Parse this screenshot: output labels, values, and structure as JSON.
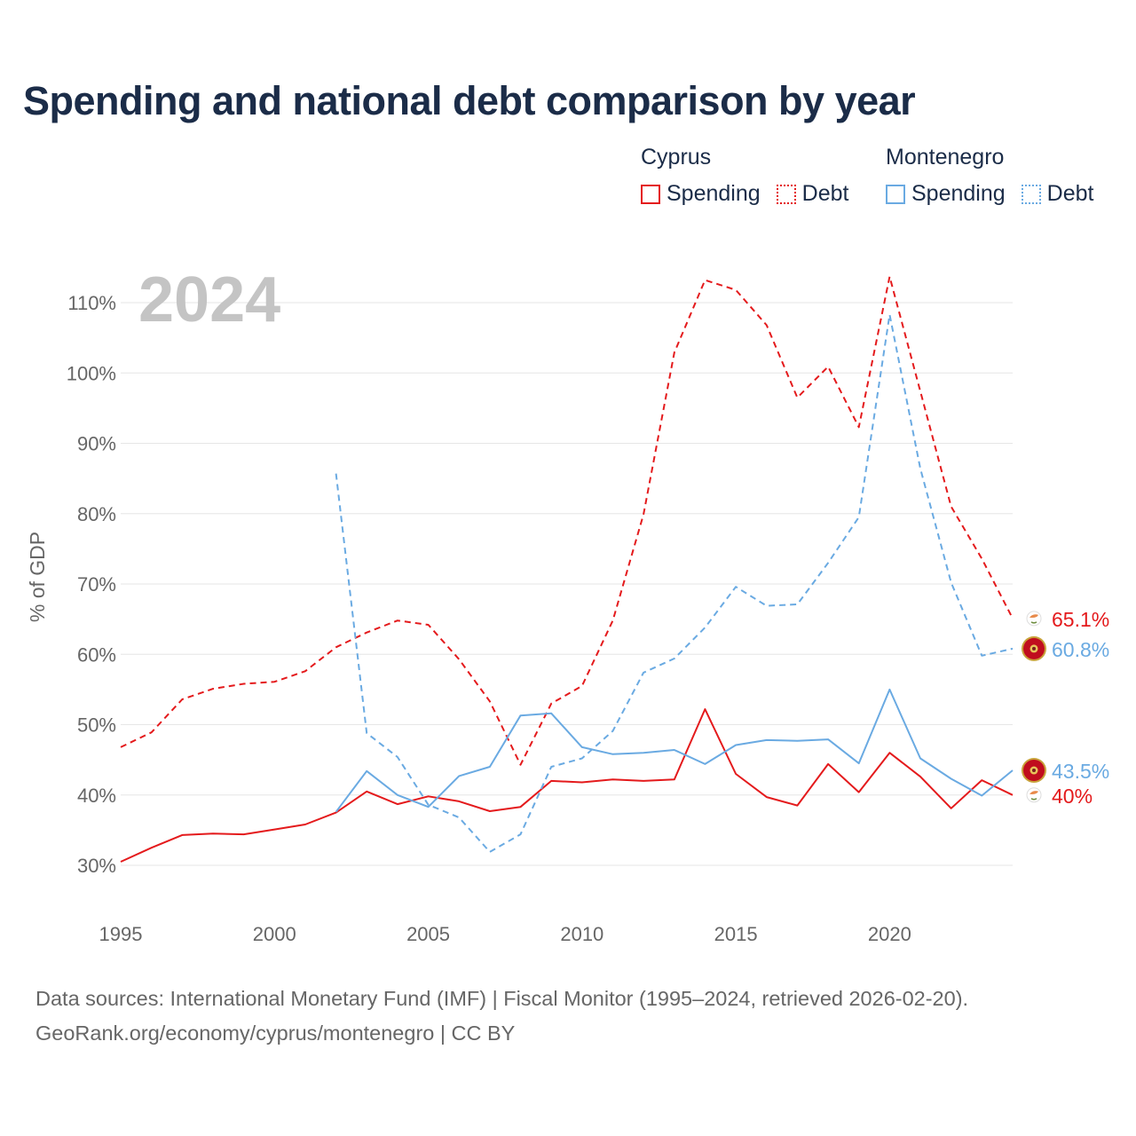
{
  "chart_data": {
    "type": "line",
    "title": "Spending and national debt comparison by year",
    "year_watermark": "2024",
    "ylabel": "% of GDP",
    "xlabel": "",
    "xlim": [
      1995,
      2024
    ],
    "ylim": [
      27,
      114
    ],
    "y_ticks": [
      30,
      40,
      50,
      60,
      70,
      80,
      90,
      100,
      110
    ],
    "y_tick_labels": [
      "30%",
      "40%",
      "50%",
      "60%",
      "70%",
      "80%",
      "90%",
      "100%",
      "110%"
    ],
    "x_ticks": [
      1995,
      2000,
      2005,
      2010,
      2015,
      2020
    ],
    "x_tick_labels": [
      "1995",
      "2000",
      "2005",
      "2010",
      "2015",
      "2020"
    ],
    "grid": true,
    "legend_position": "top-right",
    "legend": {
      "groups": [
        {
          "country": "Cyprus",
          "color": "#e41a1c",
          "items": [
            {
              "label": "Spending",
              "style": "solid"
            },
            {
              "label": "Debt",
              "style": "dotted"
            }
          ]
        },
        {
          "country": "Montenegro",
          "color": "#6aaae2",
          "items": [
            {
              "label": "Spending",
              "style": "solid"
            },
            {
              "label": "Debt",
              "style": "dotted"
            }
          ]
        }
      ]
    },
    "series": [
      {
        "name": "Cyprus Spending",
        "color": "#e41a1c",
        "dash": "solid",
        "x": [
          1995,
          1996,
          1997,
          1998,
          1999,
          2000,
          2001,
          2002,
          2003,
          2004,
          2005,
          2006,
          2007,
          2008,
          2009,
          2010,
          2011,
          2012,
          2013,
          2014,
          2015,
          2016,
          2017,
          2018,
          2019,
          2020,
          2021,
          2022,
          2023,
          2024
        ],
        "values": [
          30.5,
          32.5,
          34.3,
          34.5,
          34.4,
          35.1,
          35.8,
          37.5,
          40.5,
          38.7,
          39.8,
          39.1,
          37.7,
          38.3,
          42.0,
          41.8,
          42.2,
          42.0,
          42.2,
          52.2,
          43.0,
          39.7,
          38.5,
          44.4,
          40.4,
          46.0,
          42.6,
          38.1,
          42.1,
          40.0
        ],
        "end_label": "40%"
      },
      {
        "name": "Cyprus Debt",
        "color": "#e41a1c",
        "dash": "dashed",
        "x": [
          1995,
          1996,
          1997,
          1998,
          1999,
          2000,
          2001,
          2002,
          2003,
          2004,
          2005,
          2006,
          2007,
          2008,
          2009,
          2010,
          2011,
          2012,
          2013,
          2014,
          2015,
          2016,
          2017,
          2018,
          2019,
          2020,
          2021,
          2022,
          2023,
          2024
        ],
        "values": [
          46.8,
          48.9,
          53.6,
          55.1,
          55.8,
          56.1,
          57.6,
          61.0,
          63.1,
          64.8,
          64.2,
          59.3,
          53.3,
          44.3,
          53.0,
          55.5,
          64.8,
          79.9,
          102.9,
          113.2,
          111.8,
          106.8,
          96.5,
          100.9,
          92.3,
          113.7,
          97.4,
          81.0,
          73.6,
          65.1
        ],
        "end_label": "65.1%"
      },
      {
        "name": "Montenegro Spending",
        "color": "#6aaae2",
        "dash": "solid",
        "x": [
          2002,
          2003,
          2004,
          2005,
          2006,
          2007,
          2008,
          2009,
          2010,
          2011,
          2012,
          2013,
          2014,
          2015,
          2016,
          2017,
          2018,
          2019,
          2020,
          2021,
          2022,
          2023,
          2024
        ],
        "values": [
          37.6,
          43.4,
          40.0,
          38.3,
          42.7,
          44.0,
          51.3,
          51.6,
          46.8,
          45.8,
          46.0,
          46.4,
          44.4,
          47.1,
          47.8,
          47.7,
          47.9,
          44.5,
          55.0,
          45.2,
          42.3,
          39.9,
          43.5
        ],
        "end_label": "43.5%"
      },
      {
        "name": "Montenegro Debt",
        "color": "#6aaae2",
        "dash": "dashed",
        "x": [
          2002,
          2003,
          2004,
          2005,
          2006,
          2007,
          2008,
          2009,
          2010,
          2011,
          2012,
          2013,
          2014,
          2015,
          2016,
          2017,
          2018,
          2019,
          2020,
          2021,
          2022,
          2023,
          2024
        ],
        "values": [
          85.7,
          48.8,
          45.4,
          38.6,
          36.8,
          31.9,
          34.4,
          44.0,
          45.2,
          49.1,
          57.4,
          59.4,
          63.8,
          69.6,
          66.9,
          67.1,
          73.0,
          79.5,
          108.3,
          86.4,
          70.2,
          59.8,
          60.8
        ],
        "end_label": "60.8%"
      }
    ]
  },
  "source": {
    "line1": "Data sources: International Monetary Fund (IMF) | Fiscal Monitor (1995–2024, retrieved 2026-02-20).",
    "line2": "GeoRank.org/economy/cyprus/montenegro | CC BY"
  }
}
